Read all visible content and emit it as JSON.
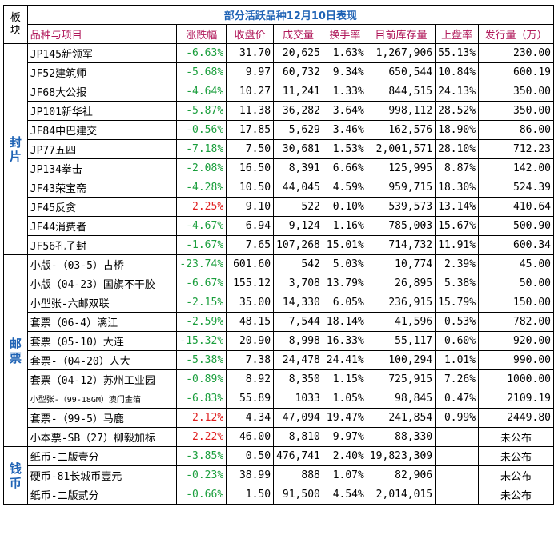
{
  "title": "部分活跃品种12月10日表现",
  "corner": [
    "板",
    "块"
  ],
  "headers": {
    "name": "品种与项目",
    "change": "涨跌幅",
    "close": "收盘价",
    "volume": "成交量",
    "turnover": "换手率",
    "stock": "目前库存量",
    "listed": "上盘率",
    "issue": "发行量（万）"
  },
  "colors": {
    "positive": "#e02020",
    "negative": "#1a9e3c",
    "accent": "#1f63b5",
    "header": "#b0185a"
  },
  "sections": [
    {
      "label": [
        "封",
        "片"
      ],
      "rows": [
        {
          "name": "JP145新领军",
          "change": "-6.63%",
          "close": "31.70",
          "volume": "20,625",
          "turnover": "1.63%",
          "stock": "1,267,906",
          "listed": "55.13%",
          "issue": "230.00"
        },
        {
          "name": "JF52建筑师",
          "change": "-5.68%",
          "close": "9.97",
          "volume": "60,732",
          "turnover": "9.34%",
          "stock": "650,544",
          "listed": "10.84%",
          "issue": "600.19"
        },
        {
          "name": "JF68大公报",
          "change": "-4.64%",
          "close": "10.27",
          "volume": "11,241",
          "turnover": "1.33%",
          "stock": "844,515",
          "listed": "24.13%",
          "issue": "350.00"
        },
        {
          "name": "JP101新华社",
          "change": "-5.87%",
          "close": "11.38",
          "volume": "36,282",
          "turnover": "3.64%",
          "stock": "998,112",
          "listed": "28.52%",
          "issue": "350.00"
        },
        {
          "name": "JF84中巴建交",
          "change": "-0.56%",
          "close": "17.85",
          "volume": "5,629",
          "turnover": "3.46%",
          "stock": "162,576",
          "listed": "18.90%",
          "issue": "86.00"
        },
        {
          "name": "JP77五四",
          "change": "-7.18%",
          "close": "7.50",
          "volume": "30,681",
          "turnover": "1.53%",
          "stock": "2,001,571",
          "listed": "28.10%",
          "issue": "712.23"
        },
        {
          "name": "JP134拳击",
          "change": "-2.08%",
          "close": "16.50",
          "volume": "8,391",
          "turnover": "6.66%",
          "stock": "125,995",
          "listed": "8.87%",
          "issue": "142.00"
        },
        {
          "name": "JF43荣宝斋",
          "change": "-4.28%",
          "close": "10.50",
          "volume": "44,045",
          "turnover": "4.59%",
          "stock": "959,715",
          "listed": "18.30%",
          "issue": "524.39"
        },
        {
          "name": "JF45反贪",
          "change": "2.25%",
          "close": "9.10",
          "volume": "522",
          "turnover": "0.10%",
          "stock": "539,573",
          "listed": "13.14%",
          "issue": "410.64"
        },
        {
          "name": "JF44消费者",
          "change": "-4.67%",
          "close": "6.94",
          "volume": "9,124",
          "turnover": "1.16%",
          "stock": "785,003",
          "listed": "15.67%",
          "issue": "500.90"
        },
        {
          "name": "JF56孔子封",
          "change": "-1.67%",
          "close": "7.65",
          "volume": "107,268",
          "turnover": "15.01%",
          "stock": "714,732",
          "listed": "11.91%",
          "issue": "600.34"
        }
      ]
    },
    {
      "label": [
        "邮",
        "票"
      ],
      "rows": [
        {
          "name": "小版-（03-5）古桥",
          "change": "-23.74%",
          "close": "601.60",
          "volume": "542",
          "turnover": "5.03%",
          "stock": "10,774",
          "listed": "2.39%",
          "issue": "45.00"
        },
        {
          "name": "小版（04-23）国旗不干胶",
          "change": "-6.67%",
          "close": "155.12",
          "volume": "3,708",
          "turnover": "13.79%",
          "stock": "26,895",
          "listed": "5.38%",
          "issue": "50.00"
        },
        {
          "name": "小型张-六邮双联",
          "change": "-2.15%",
          "close": "35.00",
          "volume": "14,330",
          "turnover": "6.05%",
          "stock": "236,915",
          "listed": "15.79%",
          "issue": "150.00"
        },
        {
          "name": "套票（06-4）漓江",
          "change": "-2.59%",
          "close": "48.15",
          "volume": "7,544",
          "turnover": "18.14%",
          "stock": "41,596",
          "listed": "0.53%",
          "issue": "782.00"
        },
        {
          "name": "套票（05-10）大连",
          "change": "-15.32%",
          "close": "20.90",
          "volume": "8,998",
          "turnover": "16.33%",
          "stock": "55,117",
          "listed": "0.60%",
          "issue": "920.00"
        },
        {
          "name": "套票-（04-20）人大",
          "change": "-5.38%",
          "close": "7.38",
          "volume": "24,478",
          "turnover": "24.41%",
          "stock": "100,294",
          "listed": "1.01%",
          "issue": "990.00"
        },
        {
          "name": "套票（04-12）苏州工业园",
          "change": "-0.89%",
          "close": "8.92",
          "volume": "8,350",
          "turnover": "1.15%",
          "stock": "725,915",
          "listed": "7.26%",
          "issue": "1000.00"
        },
        {
          "name": "小型张-（99-18GM）澳门金箔",
          "change": "-6.83%",
          "close": "55.89",
          "volume": "1033",
          "turnover": "1.05%",
          "stock": "98,845",
          "listed": "0.47%",
          "issue": "2109.19"
        },
        {
          "name": "套票-（99-5）马鹿",
          "change": "2.12%",
          "close": "4.34",
          "volume": "47,094",
          "turnover": "19.47%",
          "stock": "241,854",
          "listed": "0.99%",
          "issue": "2449.80"
        },
        {
          "name": "小本票-SB（27）柳毅加标",
          "change": "2.22%",
          "close": "46.00",
          "volume": "8,810",
          "turnover": "9.97%",
          "stock": "88,330",
          "listed": "",
          "issue": "未公布"
        }
      ]
    },
    {
      "label": [
        "钱",
        "币"
      ],
      "rows": [
        {
          "name": "纸币-二版壹分",
          "change": "-3.85%",
          "close": "0.50",
          "volume": "476,741",
          "turnover": "2.40%",
          "stock": "19,823,309",
          "listed": "",
          "issue": "未公布"
        },
        {
          "name": "硬币-81长城币壹元",
          "change": "-0.23%",
          "close": "38.99",
          "volume": "888",
          "turnover": "1.07%",
          "stock": "82,906",
          "listed": "",
          "issue": "未公布"
        },
        {
          "name": "纸币-二版贰分",
          "change": "-0.66%",
          "close": "1.50",
          "volume": "91,500",
          "turnover": "4.54%",
          "stock": "2,014,015",
          "listed": "",
          "issue": "未公布"
        }
      ]
    }
  ]
}
